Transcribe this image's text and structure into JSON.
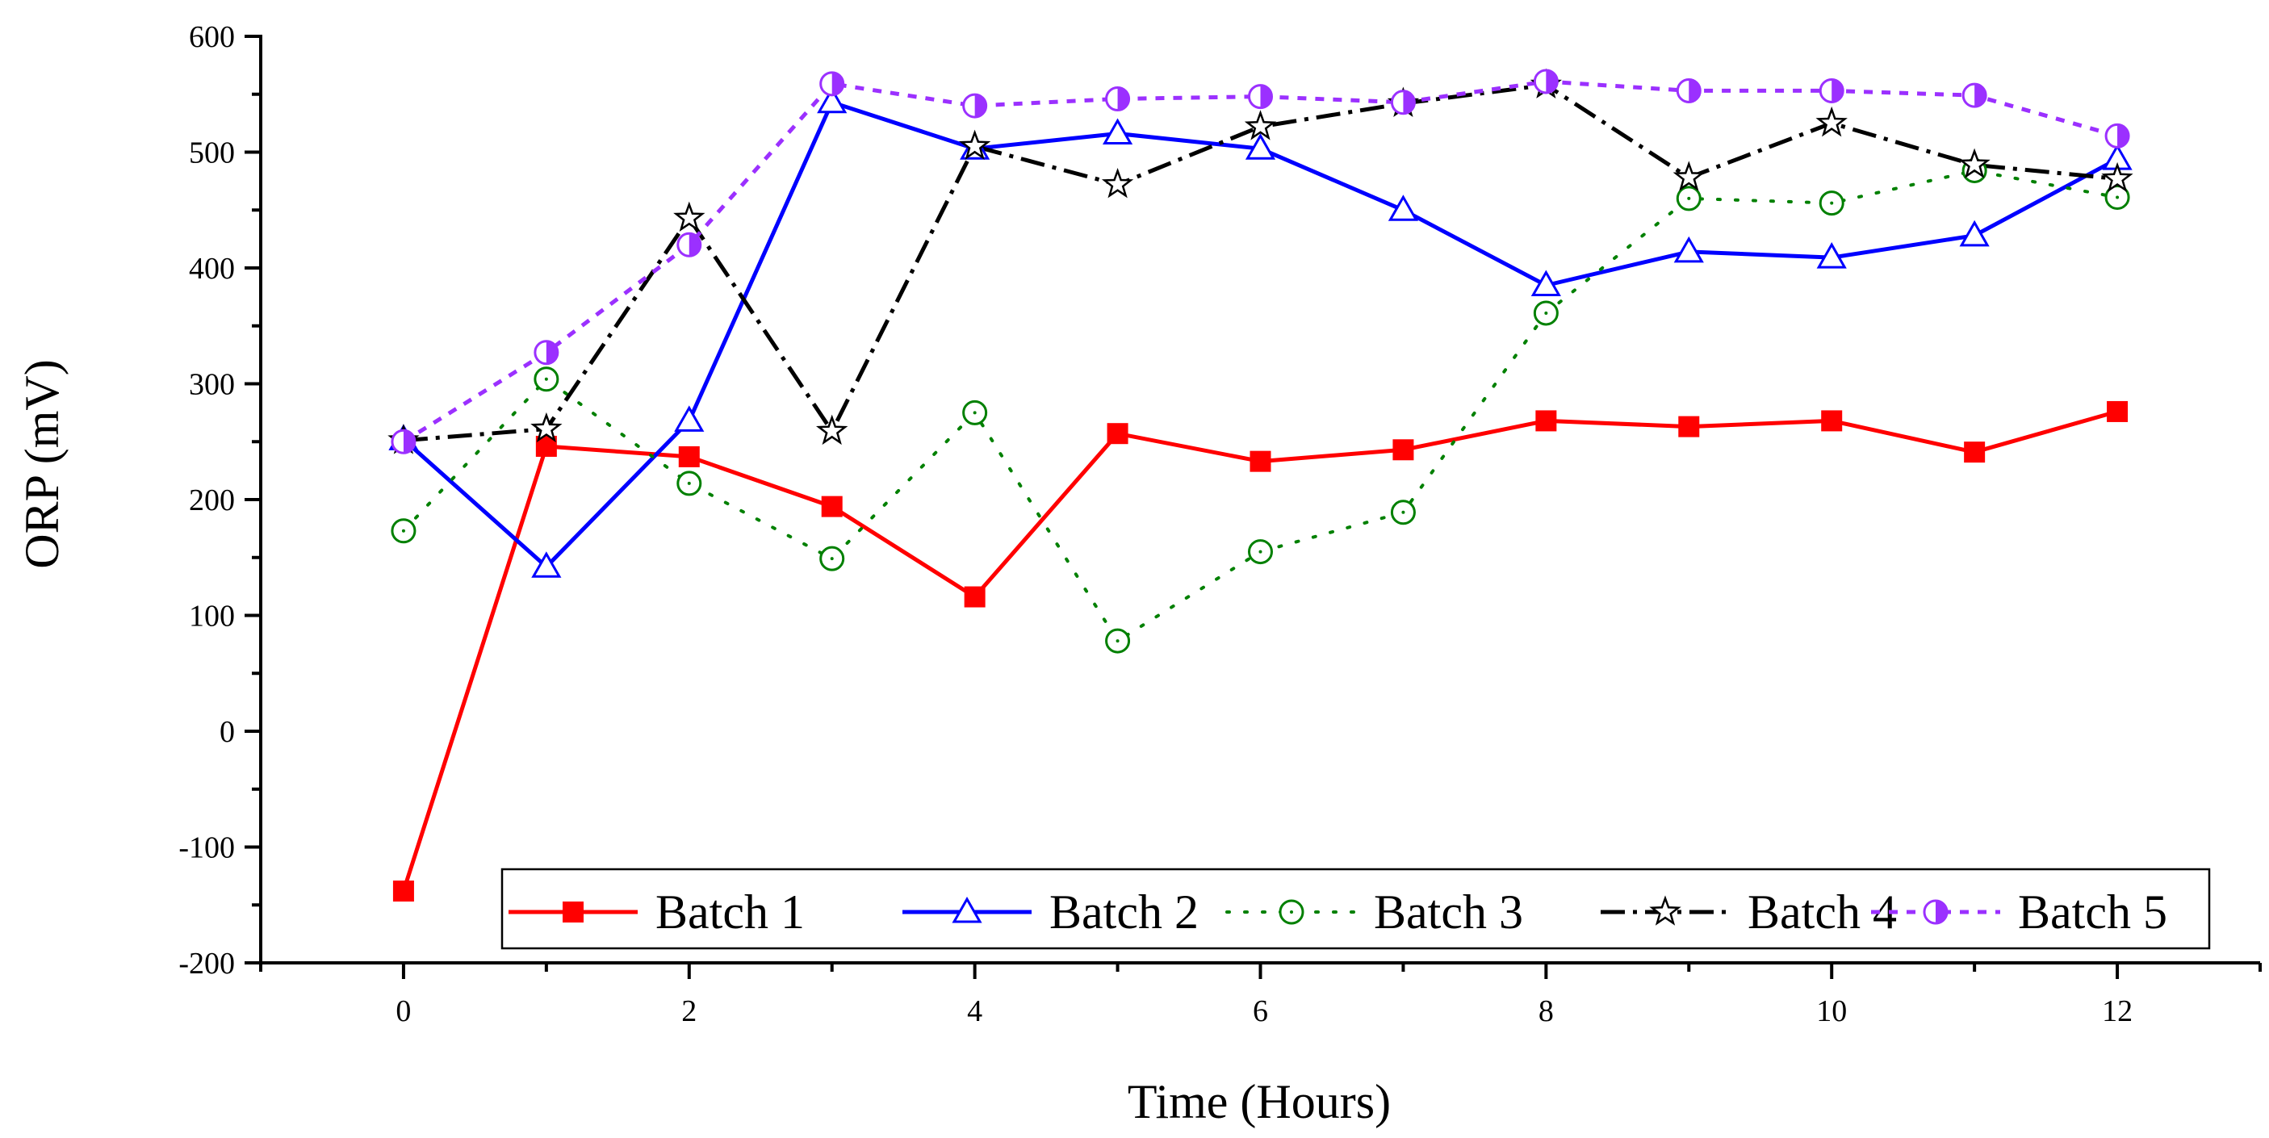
{
  "chart_data": {
    "type": "line",
    "title": "",
    "xlabel": "Time (Hours)",
    "ylabel": "ORP (mV)",
    "xlim": [
      -1,
      13
    ],
    "ylim": [
      -200,
      600
    ],
    "x_ticks": [
      0,
      2,
      4,
      6,
      8,
      10,
      12
    ],
    "y_ticks": [
      -200,
      -100,
      0,
      100,
      200,
      300,
      400,
      500,
      600
    ],
    "grid": false,
    "legend_position": "bottom-right",
    "x": [
      0,
      1,
      2,
      3,
      4,
      5,
      6,
      7,
      8,
      9,
      10,
      11,
      12
    ],
    "series": [
      {
        "name": "Batch 1",
        "color": "#ff0000",
        "line_style": "solid",
        "marker": "filled-square",
        "values": [
          -138,
          246,
          237,
          194,
          116,
          257,
          233,
          243,
          268,
          263,
          268,
          241,
          276
        ]
      },
      {
        "name": "Batch 2",
        "color": "#0000ff",
        "line_style": "solid",
        "marker": "open-triangle",
        "values": [
          252,
          142,
          268,
          543,
          503,
          516,
          503,
          450,
          385,
          414,
          409,
          428,
          494
        ]
      },
      {
        "name": "Batch 3",
        "color": "#008000",
        "line_style": "dotted",
        "marker": "open-circle-dot",
        "values": [
          173,
          304,
          214,
          149,
          275,
          78,
          155,
          189,
          361,
          460,
          456,
          484,
          461
        ]
      },
      {
        "name": "Batch 4",
        "color": "#000000",
        "line_style": "dash-dot",
        "marker": "open-star",
        "values": [
          251,
          261,
          443,
          259,
          505,
          472,
          522,
          542,
          558,
          478,
          525,
          489,
          477
        ]
      },
      {
        "name": "Batch 5",
        "color": "#9b30ff",
        "line_style": "short-dash",
        "marker": "half-filled-circle",
        "values": [
          250,
          327,
          420,
          559,
          540,
          546,
          548,
          543,
          561,
          553,
          553,
          549,
          514
        ]
      }
    ]
  }
}
